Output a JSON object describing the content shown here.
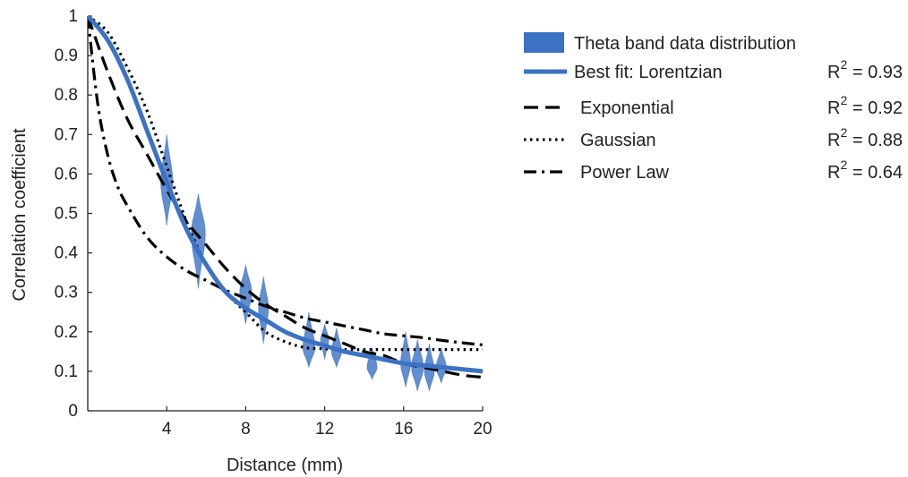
{
  "chart_data": {
    "type": "line",
    "xlabel": "Distance (mm)",
    "ylabel": "Correlation coefficient",
    "xlim": [
      0,
      20
    ],
    "ylim": [
      0,
      1
    ],
    "x_ticks": [
      4,
      8,
      12,
      16,
      20
    ],
    "y_ticks": [
      0,
      0.1,
      0.2,
      0.3,
      0.4,
      0.5,
      0.6,
      0.7,
      0.8,
      0.9,
      1
    ],
    "grid": false,
    "legend_position": "right",
    "colors": {
      "data": "#3b72c4",
      "fit": "#3b72c4",
      "models": "#000000"
    },
    "distribution": {
      "name": "Theta band data distribution",
      "points": [
        {
          "x": 4.0,
          "y_min": 0.47,
          "y_max": 0.7,
          "y_median": 0.58,
          "width": 0.6
        },
        {
          "x": 5.6,
          "y_min": 0.31,
          "y_max": 0.55,
          "y_median": 0.45,
          "width": 0.7
        },
        {
          "x": 8.0,
          "y_min": 0.22,
          "y_max": 0.37,
          "y_median": 0.3,
          "width": 0.6
        },
        {
          "x": 8.9,
          "y_min": 0.17,
          "y_max": 0.34,
          "y_median": 0.26,
          "width": 0.5
        },
        {
          "x": 11.2,
          "y_min": 0.11,
          "y_max": 0.25,
          "y_median": 0.16,
          "width": 0.6
        },
        {
          "x": 12.0,
          "y_min": 0.13,
          "y_max": 0.22,
          "y_median": 0.18,
          "width": 0.4
        },
        {
          "x": 12.6,
          "y_min": 0.11,
          "y_max": 0.21,
          "y_median": 0.15,
          "width": 0.5
        },
        {
          "x": 14.4,
          "y_min": 0.08,
          "y_max": 0.16,
          "y_median": 0.11,
          "width": 0.5
        },
        {
          "x": 16.1,
          "y_min": 0.06,
          "y_max": 0.2,
          "y_median": 0.12,
          "width": 0.5
        },
        {
          "x": 16.7,
          "y_min": 0.05,
          "y_max": 0.18,
          "y_median": 0.11,
          "width": 0.6
        },
        {
          "x": 17.3,
          "y_min": 0.05,
          "y_max": 0.17,
          "y_median": 0.1,
          "width": 0.5
        },
        {
          "x": 17.9,
          "y_min": 0.07,
          "y_max": 0.16,
          "y_median": 0.11,
          "width": 0.5
        }
      ]
    },
    "series": [
      {
        "name": "Best fit: Lorentzian",
        "r2_label": "R",
        "r2_sup": "2",
        "r2_value": " = 0.93",
        "style": "solid",
        "x": [
          0,
          1,
          2,
          3,
          4,
          5,
          6,
          7,
          8,
          9,
          10,
          11,
          12,
          13,
          14,
          15,
          16,
          17,
          18,
          19,
          20
        ],
        "y": [
          1.0,
          0.94,
          0.84,
          0.71,
          0.58,
          0.46,
          0.37,
          0.3,
          0.26,
          0.23,
          0.2,
          0.18,
          0.165,
          0.15,
          0.14,
          0.13,
          0.12,
          0.115,
          0.11,
          0.105,
          0.1
        ]
      },
      {
        "name": "Exponential",
        "r2_label": "R",
        "r2_sup": "2",
        "r2_value": " = 0.92",
        "style": "dashed",
        "x": [
          0,
          1,
          2,
          3,
          4,
          5,
          6,
          7,
          8,
          9,
          10,
          11,
          12,
          13,
          14,
          15,
          16,
          17,
          18,
          19,
          20
        ],
        "y": [
          1.0,
          0.86,
          0.74,
          0.65,
          0.56,
          0.48,
          0.42,
          0.36,
          0.31,
          0.27,
          0.24,
          0.21,
          0.19,
          0.17,
          0.15,
          0.14,
          0.12,
          0.11,
          0.1,
          0.09,
          0.085
        ]
      },
      {
        "name": "Gaussian",
        "r2_label": "R",
        "r2_sup": "2",
        "r2_value": " = 0.88",
        "style": "dotted",
        "x": [
          0,
          1,
          2,
          3,
          4,
          5,
          6,
          7,
          8,
          9,
          10,
          11,
          12,
          13,
          14,
          15,
          16,
          17,
          18,
          19,
          20
        ],
        "y": [
          1.0,
          0.96,
          0.87,
          0.76,
          0.62,
          0.48,
          0.37,
          0.3,
          0.25,
          0.2,
          0.175,
          0.16,
          0.157,
          0.155,
          0.155,
          0.155,
          0.155,
          0.155,
          0.155,
          0.155,
          0.155
        ]
      },
      {
        "name": "Power Law",
        "r2_label": "R",
        "r2_sup": "2",
        "r2_value": " = 0.64",
        "style": "dashdot",
        "x": [
          0,
          0.5,
          1,
          1.5,
          2,
          3,
          4,
          5,
          6,
          7,
          8,
          9,
          10,
          11,
          12,
          13,
          14,
          15,
          16,
          17,
          18,
          19,
          20
        ],
        "y": [
          1.0,
          0.78,
          0.65,
          0.57,
          0.52,
          0.44,
          0.39,
          0.355,
          0.33,
          0.305,
          0.285,
          0.265,
          0.25,
          0.235,
          0.225,
          0.215,
          0.205,
          0.195,
          0.19,
          0.185,
          0.178,
          0.172,
          0.167
        ]
      }
    ]
  }
}
